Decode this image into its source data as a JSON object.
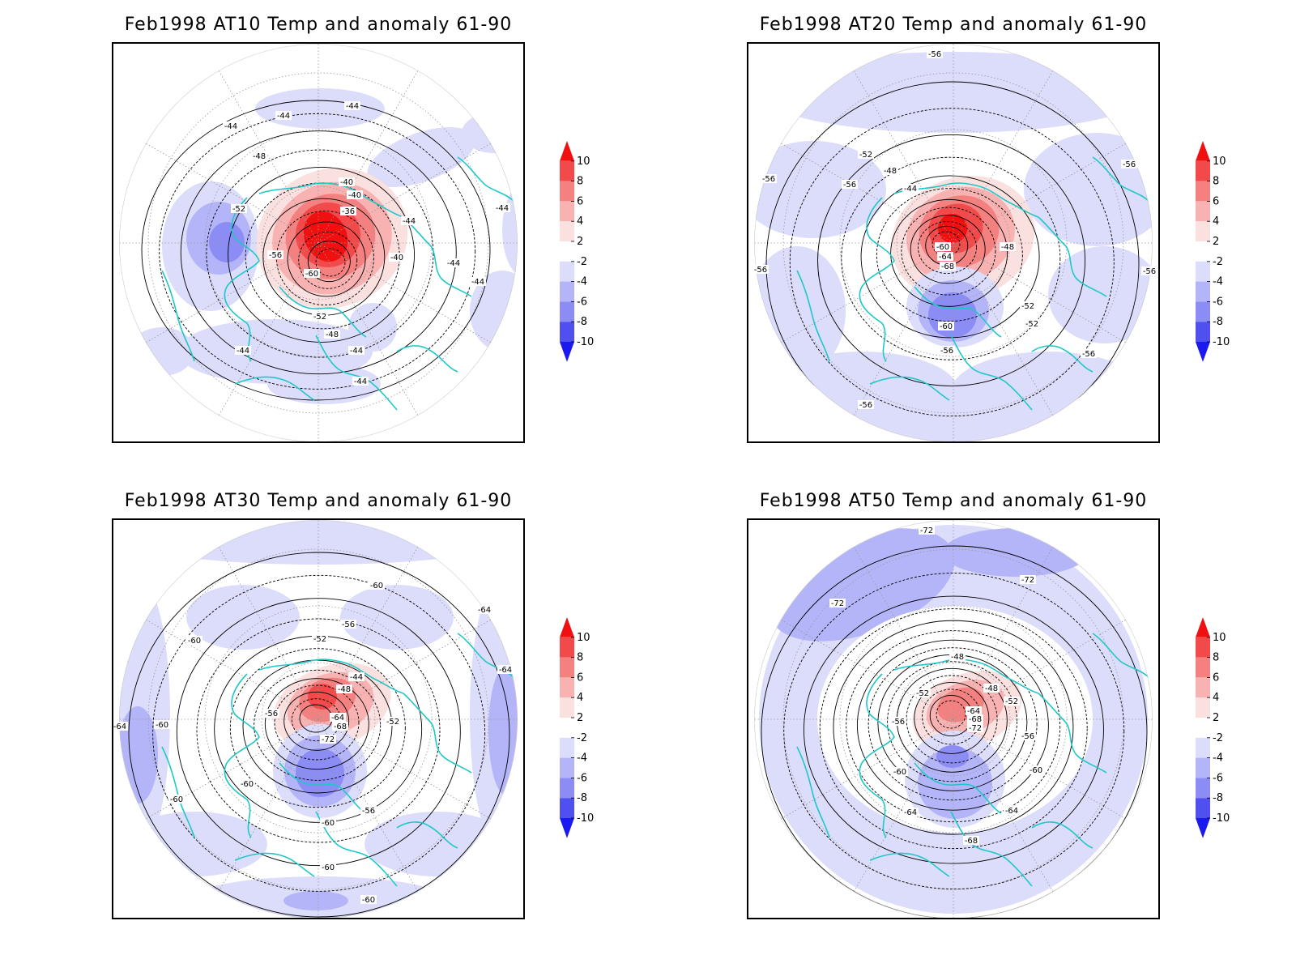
{
  "colorbar": {
    "levels": [
      "10",
      "8",
      "6",
      "4",
      "2",
      "-2",
      "-4",
      "-6",
      "-8",
      "-10"
    ],
    "colors": [
      "#f01010",
      "#f24a4a",
      "#f58080",
      "#f8b2b2",
      "#fbe0e0",
      "#ffffff",
      "#dcdcfb",
      "#b4b4f8",
      "#8c8cf5",
      "#5050f0",
      "#1a1af0"
    ]
  },
  "coast_color": "#1ec8c8",
  "panels": [
    {
      "title": "Feb1998 AT10 Temp and anomaly 61-90",
      "level": "AT10",
      "contour_labels": [
        "-44",
        "-44",
        "-44",
        "-48",
        "-52",
        "-56",
        "-60",
        "-52",
        "-48",
        "-44",
        "-40",
        "-40",
        "-36",
        "-40",
        "-44",
        "-44",
        "-44",
        "-44",
        "-44",
        "-44"
      ]
    },
    {
      "title": "Feb1998 AT20 Temp and anomaly 61-90",
      "level": "AT20",
      "contour_labels": [
        "-56",
        "-56",
        "-56",
        "-56",
        "-52",
        "-48",
        "-44",
        "-56",
        "-60",
        "-64",
        "-68",
        "-48",
        "-52",
        "-52",
        "-60",
        "-56",
        "-56",
        "-56",
        "-56"
      ]
    },
    {
      "title": "Feb1998 AT30 Temp and anomaly 61-90",
      "level": "AT30",
      "contour_labels": [
        "-60",
        "-60",
        "-56",
        "-52",
        "-44",
        "-48",
        "-56",
        "-64",
        "-68",
        "-72",
        "-52",
        "-60",
        "-60",
        "-60",
        "-56",
        "-60",
        "-60",
        "-60",
        "-64",
        "-64",
        "-64"
      ]
    },
    {
      "title": "Feb1998 AT50 Temp and anomaly 61-90",
      "level": "AT50",
      "contour_labels": [
        "-72",
        "-72",
        "-72",
        "-48",
        "-52",
        "-48",
        "-52",
        "-56",
        "-64",
        "-68",
        "-72",
        "-56",
        "-60",
        "-60",
        "-64",
        "-64",
        "-68"
      ]
    }
  ]
}
